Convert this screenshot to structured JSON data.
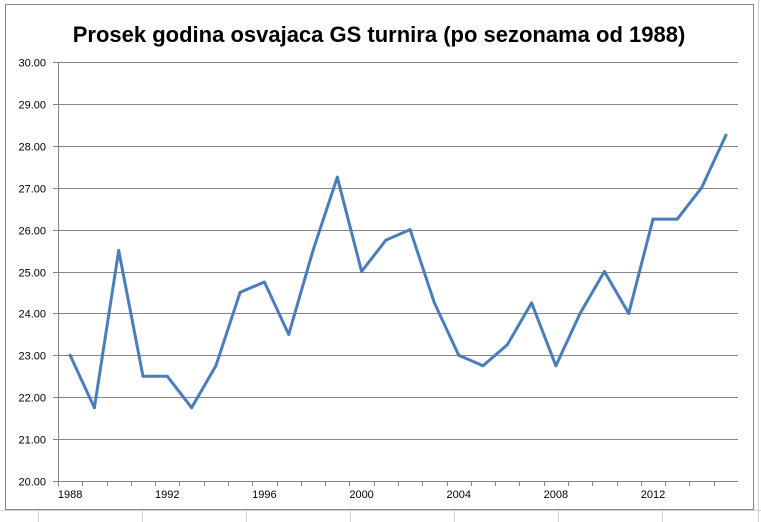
{
  "chart_data": {
    "type": "line",
    "title": "Prosek godina osvajaca GS turnira (po sezonama od 1988)",
    "xlabel": "",
    "ylabel": "",
    "x": [
      1988,
      1989,
      1990,
      1991,
      1992,
      1993,
      1994,
      1995,
      1996,
      1997,
      1998,
      1999,
      2000,
      2001,
      2002,
      2003,
      2004,
      2005,
      2006,
      2007,
      2008,
      2009,
      2010,
      2011,
      2012,
      2013,
      2014,
      2015
    ],
    "series": [
      {
        "values": [
          23.0,
          21.75,
          25.5,
          22.5,
          22.5,
          21.75,
          22.75,
          24.5,
          24.75,
          23.5,
          25.5,
          27.25,
          25.0,
          25.75,
          26.0,
          24.25,
          23.0,
          22.75,
          23.25,
          24.25,
          22.75,
          24.0,
          25.0,
          24.0,
          26.25,
          26.25,
          27.0,
          28.25
        ],
        "color": "#4a7ebb"
      }
    ],
    "x_ticks": [
      "1988",
      "1992",
      "1996",
      "2000",
      "2004",
      "2008",
      "2012"
    ],
    "x_tick_years": [
      1988,
      1992,
      1996,
      2000,
      2004,
      2008,
      2012
    ],
    "y_ticks": [
      "20.00",
      "21.00",
      "22.00",
      "23.00",
      "24.00",
      "25.00",
      "26.00",
      "27.00",
      "28.00",
      "29.00",
      "30.00"
    ],
    "ylim": [
      20,
      30
    ],
    "xlim": [
      1987.5,
      2015.5
    ],
    "grid": "horizontal",
    "legend": "none"
  }
}
